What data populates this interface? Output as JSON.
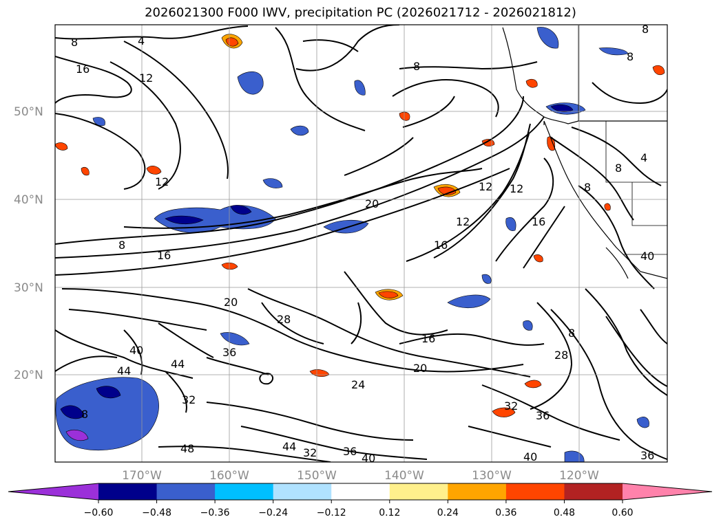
{
  "title": "2026021300 F000 IWV, precipitation PC (2026021712 - 2026021812)",
  "map": {
    "lat_ticks": [
      "50°N",
      "40°N",
      "30°N",
      "20°N"
    ],
    "lon_ticks": [
      "170°W",
      "160°W",
      "150°W",
      "140°W",
      "130°W",
      "120°W"
    ],
    "contour_labels": [
      "8",
      "4",
      "16",
      "12",
      "8",
      "8",
      "8",
      "12",
      "4",
      "8",
      "8",
      "12",
      "12",
      "20",
      "12",
      "16",
      "16",
      "8",
      "16",
      "20",
      "28",
      "36",
      "16",
      "20",
      "24",
      "28",
      "40",
      "44",
      "44",
      "32",
      "48",
      "44",
      "32",
      "36",
      "40",
      "32",
      "36",
      "8",
      "40",
      "36",
      "8",
      "40"
    ]
  },
  "colorbar": {
    "ticks": [
      "−0.60",
      "−0.48",
      "−0.36",
      "−0.24",
      "−0.12",
      "0.12",
      "0.24",
      "0.36",
      "0.48",
      "0.60"
    ],
    "colors": [
      "#9b30d9",
      "#00008b",
      "#3a5fcd",
      "#00bfff",
      "#b0e2ff",
      "#ffffff",
      "#fff08c",
      "#ffa500",
      "#ff4500",
      "#b22222",
      "#ff82ab"
    ]
  },
  "colors": {
    "contour": "#000000",
    "grid": "#999999",
    "tick_text": "#8a8a8a"
  }
}
